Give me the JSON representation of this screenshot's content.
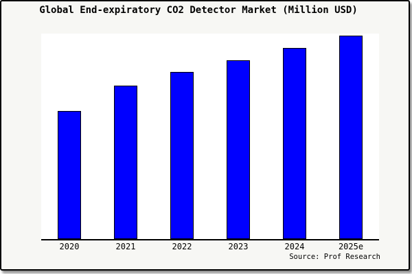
{
  "title": "Global End-expiratory CO2 Detector Market (Million USD)",
  "source_credit": "Source: Prof Research",
  "colors": {
    "bar_fill": "#0000ff",
    "bar_border": "#000000",
    "axis": "#000000",
    "frame_border": "#000000",
    "background": "#f7f7f4",
    "plot_background": "#ffffff",
    "text": "#000000"
  },
  "chart_data": {
    "type": "bar",
    "categories": [
      "2020",
      "2021",
      "2022",
      "2023",
      "2024",
      "2025e"
    ],
    "values": [
      63,
      75.5,
      82,
      88,
      94,
      100
    ],
    "title": "Global End-expiratory CO2 Detector Market (Million USD)",
    "xlabel": "",
    "ylabel": "",
    "ylim": [
      0,
      101
    ],
    "grid": false,
    "legend": false,
    "y_axis_shown": false,
    "bar_color": "#0000ff",
    "annotations": [
      "Source: Prof Research"
    ]
  }
}
